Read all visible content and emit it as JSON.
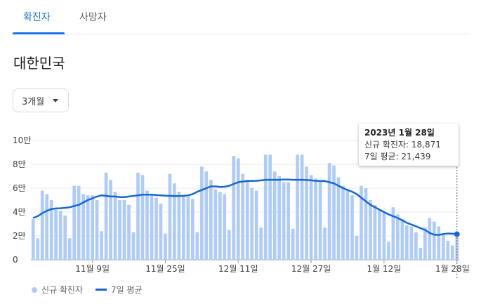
{
  "tabs": [
    {
      "label": "확진자"
    },
    {
      "label": "사망자"
    }
  ],
  "region": "대한민국",
  "range_selector": {
    "value": "3개월"
  },
  "tooltip": {
    "date": "2023년 1월 28일",
    "cases_line": "신규 확진자: 18,871",
    "avg_line": "7일 평균: 21,439"
  },
  "legend": {
    "cases": "신규 확진자",
    "avg": "7일 평균"
  },
  "colors": {
    "bar": "#aecbfa",
    "line": "#1967d2",
    "accent": "#1a73e8"
  },
  "chart_data": {
    "type": "bar",
    "y_tick_labels": [
      "0",
      "2만",
      "4만",
      "6만",
      "8만",
      "10만"
    ],
    "ylim": [
      0,
      100000
    ],
    "x_tick_labels": [
      {
        "label": "11월 9일",
        "index": 13
      },
      {
        "label": "11월 25일",
        "index": 29
      },
      {
        "label": "12월 11일",
        "index": 45
      },
      {
        "label": "12월 27일",
        "index": 61
      },
      {
        "label": "1월 12일",
        "index": 77
      },
      {
        "label": "1월 28일",
        "index": 93
      }
    ],
    "series": [
      {
        "name": "신규 확진자",
        "type": "bar",
        "values": [
          34000,
          18000,
          58000,
          55000,
          50000,
          42000,
          41000,
          37000,
          18000,
          62000,
          62000,
          55000,
          54000,
          54000,
          50000,
          24000,
          73000,
          67000,
          57000,
          50000,
          50000,
          46000,
          23000,
          73000,
          71000,
          58000,
          55000,
          52000,
          47000,
          22000,
          72000,
          64000,
          57000,
          54000,
          53000,
          51000,
          23000,
          78000,
          74000,
          67000,
          59000,
          57000,
          55000,
          25000,
          87000,
          85000,
          72000,
          67000,
          60000,
          58000,
          27000,
          88000,
          88000,
          74000,
          70000,
          65000,
          65000,
          26000,
          88000,
          88000,
          78000,
          71000,
          68000,
          66000,
          27000,
          81000,
          79000,
          69000,
          62000,
          58000,
          54000,
          20000,
          62000,
          60000,
          50000,
          46000,
          42000,
          40000,
          15000,
          44000,
          38000,
          34000,
          29000,
          28000,
          23000,
          10000,
          27000,
          35000,
          32000,
          28000,
          21000,
          16000,
          12000,
          18871
        ]
      },
      {
        "name": "7일 평균",
        "type": "line",
        "values": [
          35000,
          36500,
          39000,
          41000,
          42500,
          43000,
          43200,
          43500,
          44000,
          45000,
          46000,
          48000,
          50000,
          51500,
          53000,
          54000,
          53500,
          53000,
          53000,
          52500,
          52500,
          53000,
          53500,
          54000,
          54500,
          54500,
          54500,
          54200,
          54000,
          53700,
          53500,
          53400,
          53400,
          53500,
          54000,
          55000,
          57000,
          58500,
          60000,
          61500,
          61500,
          61000,
          61200,
          62000,
          63500,
          65000,
          65500,
          66000,
          66000,
          66200,
          66500,
          67000,
          67000,
          67000,
          67000,
          67200,
          67200,
          67000,
          67000,
          67000,
          66800,
          66500,
          66200,
          66000,
          66000,
          65000,
          64000,
          62000,
          60000,
          58500,
          57000,
          55000,
          52000,
          49000,
          46000,
          44000,
          42000,
          40000,
          38000,
          36500,
          35000,
          33000,
          31000,
          29500,
          28000,
          26500,
          25000,
          22500,
          21000,
          20800,
          21500,
          22000,
          21800,
          21439
        ]
      }
    ]
  }
}
